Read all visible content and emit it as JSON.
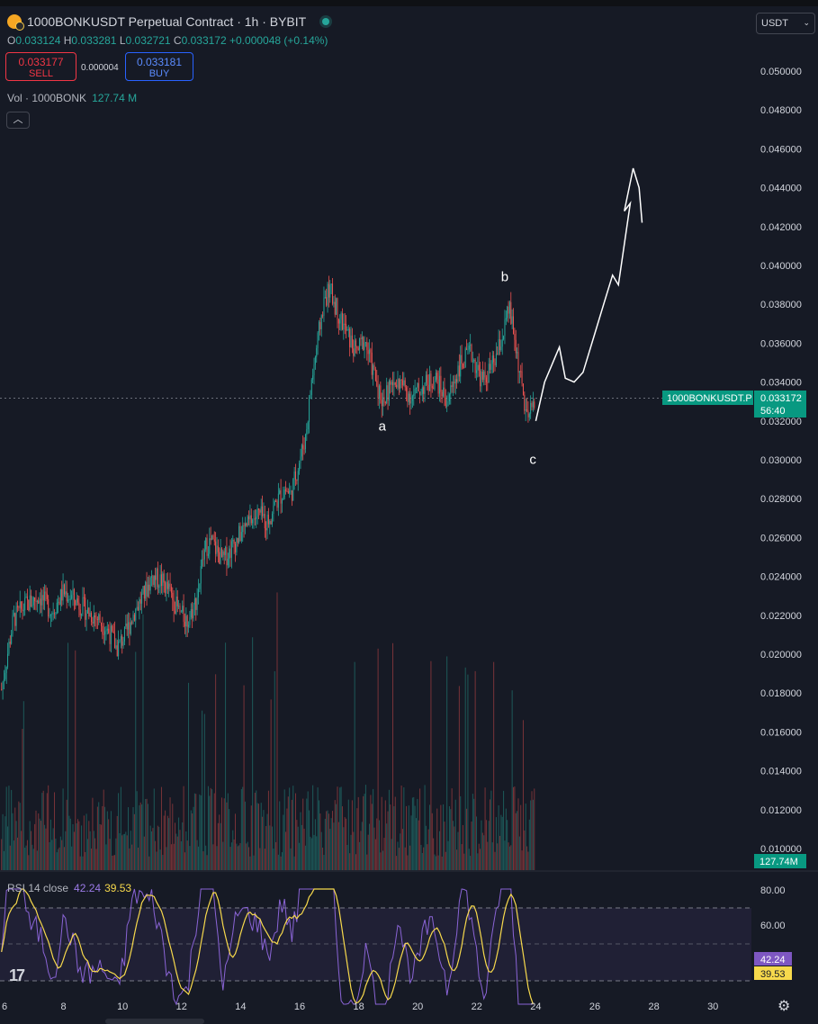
{
  "header": {
    "title": "1000BONKUSDT Perpetual Contract · 1h · BYBIT",
    "ohlc": [
      {
        "k": "O",
        "v": "0.033124"
      },
      {
        "k": "H",
        "v": "0.033281"
      },
      {
        "k": "L",
        "v": "0.032721"
      },
      {
        "k": "C",
        "v": "0.033172"
      },
      {
        "k": "",
        "v": "+0.000048 (+0.14%)"
      }
    ],
    "sell_price": "0.033177",
    "sell_label": "SELL",
    "spread": "0.000004",
    "buy_price": "0.033181",
    "buy_label": "BUY",
    "volume_label": "Vol · 1000BONK",
    "volume_value": "127.74 M",
    "collapse_icon": "chevron-up-icon",
    "currency": "USDT"
  },
  "colors": {
    "bull": "#26a69a",
    "bear": "#ef5350",
    "rsi": "#8a64d6",
    "rsi_ma": "#f7d94c",
    "bg": "#161a25"
  },
  "price_tag": {
    "symbol": "1000BONKUSDT.P",
    "price": "0.033172",
    "countdown": "56:40",
    "volume": "127.74M"
  },
  "rsi": {
    "title": "RSI 14 close",
    "value": "42.24",
    "ma": "39.53",
    "ticks": [
      "80.00",
      "60.00"
    ]
  },
  "annotations": [
    "a",
    "b",
    "c"
  ],
  "chart_data": {
    "type": "candlestick",
    "timeframe": "1h",
    "xaxis_ticks": [
      "6",
      "8",
      "10",
      "12",
      "14",
      "16",
      "18",
      "20",
      "22",
      "24",
      "26",
      "28",
      "30"
    ],
    "yaxis_ticks": [
      "0.050000",
      "0.048000",
      "0.046000",
      "0.044000",
      "0.042000",
      "0.040000",
      "0.038000",
      "0.036000",
      "0.034000",
      "0.032000",
      "0.030000",
      "0.028000",
      "0.026000",
      "0.024000",
      "0.022000",
      "0.020000",
      "0.018000",
      "0.016000",
      "0.014000",
      "0.012000",
      "0.010000"
    ],
    "ylim": [
      0.0095,
      0.0515
    ],
    "price_path": [
      [
        5.9,
        0.0182
      ],
      [
        6.3,
        0.0218
      ],
      [
        6.7,
        0.0225
      ],
      [
        7.2,
        0.023
      ],
      [
        7.6,
        0.0222
      ],
      [
        8.0,
        0.0232
      ],
      [
        8.4,
        0.0228
      ],
      [
        8.8,
        0.0222
      ],
      [
        9.2,
        0.0218
      ],
      [
        9.6,
        0.021
      ],
      [
        9.8,
        0.0203
      ],
      [
        10.1,
        0.021
      ],
      [
        10.4,
        0.0222
      ],
      [
        10.7,
        0.023
      ],
      [
        11.0,
        0.024
      ],
      [
        11.3,
        0.0238
      ],
      [
        11.6,
        0.0232
      ],
      [
        11.9,
        0.0222
      ],
      [
        12.2,
        0.0217
      ],
      [
        12.5,
        0.0228
      ],
      [
        12.8,
        0.0255
      ],
      [
        13.0,
        0.0258
      ],
      [
        13.4,
        0.0248
      ],
      [
        13.7,
        0.0255
      ],
      [
        14.0,
        0.0262
      ],
      [
        14.3,
        0.0268
      ],
      [
        14.6,
        0.0272
      ],
      [
        14.9,
        0.0268
      ],
      [
        15.2,
        0.0278
      ],
      [
        15.5,
        0.0285
      ],
      [
        15.7,
        0.0282
      ],
      [
        16.0,
        0.03
      ],
      [
        16.2,
        0.0312
      ],
      [
        16.4,
        0.034
      ],
      [
        16.6,
        0.036
      ],
      [
        16.8,
        0.038
      ],
      [
        17.0,
        0.0388
      ],
      [
        17.2,
        0.038
      ],
      [
        17.4,
        0.0372
      ],
      [
        17.6,
        0.0365
      ],
      [
        17.9,
        0.0355
      ],
      [
        18.2,
        0.0362
      ],
      [
        18.5,
        0.0345
      ],
      [
        18.8,
        0.033
      ],
      [
        19.1,
        0.0338
      ],
      [
        19.4,
        0.034
      ],
      [
        19.8,
        0.0332
      ],
      [
        20.2,
        0.0338
      ],
      [
        20.6,
        0.0342
      ],
      [
        21.0,
        0.033
      ],
      [
        21.4,
        0.0348
      ],
      [
        21.8,
        0.0355
      ],
      [
        22.2,
        0.034
      ],
      [
        22.6,
        0.035
      ],
      [
        22.9,
        0.0365
      ],
      [
        23.1,
        0.0378
      ],
      [
        23.3,
        0.036
      ],
      [
        23.5,
        0.034
      ],
      [
        23.7,
        0.032
      ],
      [
        23.85,
        0.0325
      ],
      [
        23.95,
        0.03317
      ]
    ],
    "projection": [
      [
        24.0,
        0.032
      ],
      [
        24.3,
        0.034
      ],
      [
        24.8,
        0.0358
      ],
      [
        25.0,
        0.0342
      ],
      [
        25.3,
        0.034
      ],
      [
        25.6,
        0.0345
      ],
      [
        26.0,
        0.0365
      ],
      [
        26.3,
        0.038
      ],
      [
        26.6,
        0.0395
      ],
      [
        26.8,
        0.039
      ],
      [
        27.2,
        0.0432
      ],
      [
        27.0,
        0.0428
      ],
      [
        27.3,
        0.045
      ],
      [
        27.5,
        0.044
      ],
      [
        27.6,
        0.0422
      ]
    ],
    "annotation_points": [
      {
        "label": "a",
        "x": 18.8,
        "y": 0.0315
      },
      {
        "label": "b",
        "x": 22.95,
        "y": 0.0392
      },
      {
        "label": "c",
        "x": 23.9,
        "y": 0.0298
      }
    ],
    "volume_last": 127.74,
    "rsi_last": 42.24,
    "rsi_ma_last": 39.53,
    "grid": false
  }
}
